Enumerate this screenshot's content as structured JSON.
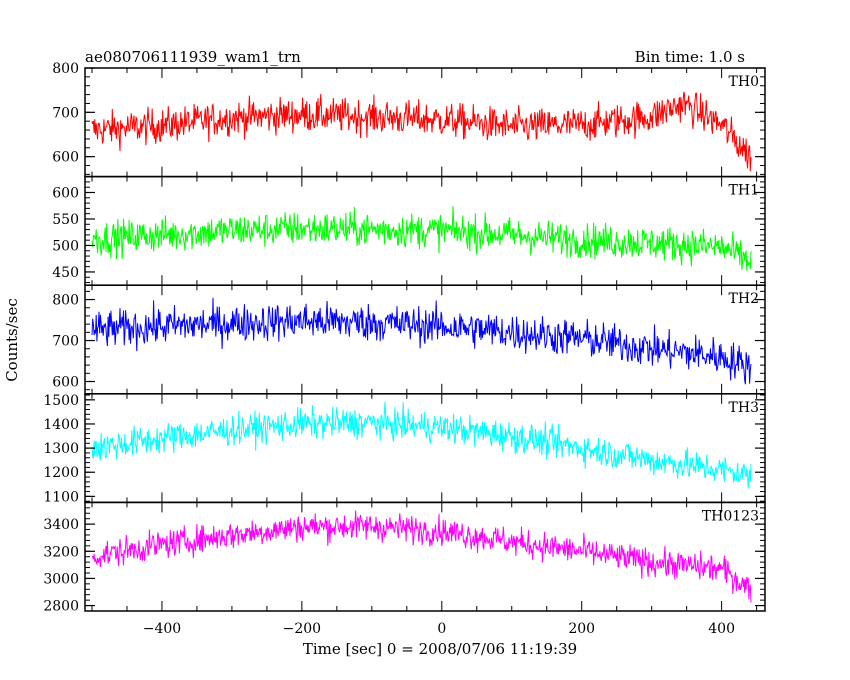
{
  "chart_data": {
    "type": "line",
    "title": "ae080706111939_wam1_trn",
    "bin_label": "Bin time: 1.0 s",
    "xlabel": "Time [sec] 0 = 2008/07/06 11:19:39",
    "ylabel": "Counts/sec",
    "xlim": [
      -510,
      462
    ],
    "x_data_range": [
      -500,
      442
    ],
    "x_step": 1,
    "xticks": [
      -400,
      -200,
      0,
      200,
      400
    ],
    "xtick_labels": [
      "−400",
      "−200",
      "0",
      "200",
      "400"
    ],
    "panels": [
      {
        "name": "TH0",
        "color": "#ff0000",
        "ylim": [
          555,
          800
        ],
        "yticks": [
          600,
          700,
          800
        ],
        "trend": [
          [
            -500,
            660
          ],
          [
            -400,
            670
          ],
          [
            -300,
            688
          ],
          [
            -200,
            695
          ],
          [
            -100,
            690
          ],
          [
            0,
            683
          ],
          [
            100,
            668
          ],
          [
            200,
            672
          ],
          [
            300,
            690
          ],
          [
            345,
            720
          ],
          [
            400,
            672
          ],
          [
            442,
            598
          ]
        ],
        "noise": 36
      },
      {
        "name": "TH1",
        "color": "#00ff00",
        "ylim": [
          425,
          630
        ],
        "yticks": [
          450,
          500,
          550,
          600
        ],
        "trend": [
          [
            -500,
            512
          ],
          [
            -400,
            520
          ],
          [
            -300,
            528
          ],
          [
            -200,
            532
          ],
          [
            -100,
            530
          ],
          [
            0,
            528
          ],
          [
            100,
            520
          ],
          [
            200,
            510
          ],
          [
            300,
            505
          ],
          [
            400,
            497
          ],
          [
            442,
            470
          ]
        ],
        "noise": 30
      },
      {
        "name": "TH2",
        "color": "#0000ff",
        "ylim": [
          570,
          835
        ],
        "yticks": [
          600,
          700,
          800
        ],
        "trend": [
          [
            -500,
            725
          ],
          [
            -400,
            735
          ],
          [
            -300,
            742
          ],
          [
            -200,
            748
          ],
          [
            -100,
            744
          ],
          [
            0,
            735
          ],
          [
            100,
            720
          ],
          [
            200,
            705
          ],
          [
            300,
            680
          ],
          [
            400,
            660
          ],
          [
            442,
            635
          ]
        ],
        "noise": 42
      },
      {
        "name": "TH3",
        "color": "#00ffff",
        "ylim": [
          1075,
          1525
        ],
        "yticks": [
          1100,
          1200,
          1300,
          1400,
          1500
        ],
        "trend": [
          [
            -500,
            1300
          ],
          [
            -400,
            1340
          ],
          [
            -300,
            1375
          ],
          [
            -200,
            1400
          ],
          [
            -100,
            1405
          ],
          [
            0,
            1385
          ],
          [
            100,
            1350
          ],
          [
            200,
            1300
          ],
          [
            300,
            1250
          ],
          [
            400,
            1210
          ],
          [
            442,
            1185
          ]
        ],
        "noise": 58
      },
      {
        "name": "TH0123",
        "color": "#ff00ff",
        "ylim": [
          2760,
          3560
        ],
        "yticks": [
          2800,
          3000,
          3200,
          3400
        ],
        "trend": [
          [
            -500,
            3160
          ],
          [
            -400,
            3250
          ],
          [
            -300,
            3320
          ],
          [
            -200,
            3380
          ],
          [
            -100,
            3385
          ],
          [
            0,
            3350
          ],
          [
            100,
            3270
          ],
          [
            200,
            3200
          ],
          [
            300,
            3120
          ],
          [
            400,
            3070
          ],
          [
            442,
            2920
          ]
        ],
        "noise": 95
      }
    ]
  }
}
